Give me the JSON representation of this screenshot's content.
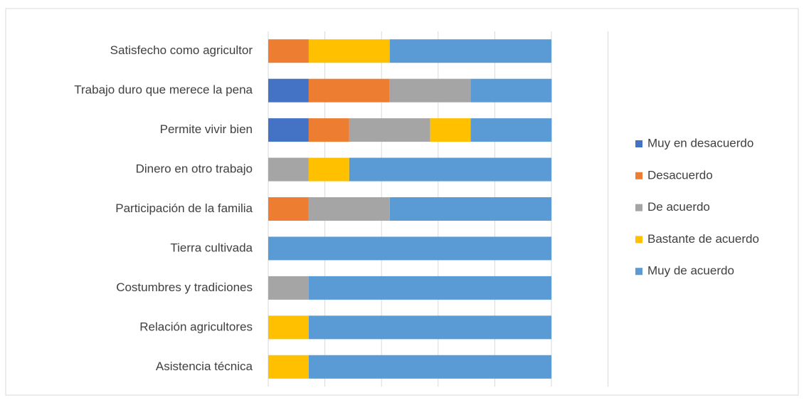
{
  "chart_data": {
    "type": "stacked-barh",
    "categories": [
      "Satisfecho como agricultor",
      "Trabajo duro  que merece la pena",
      "Permite vivir bien",
      "Dinero en otro trabajo ",
      "Participación de la familia",
      "Tierra cultivada",
      "Costumbres y tradiciones",
      "Relación agricultores",
      "Asistencia técnica "
    ],
    "series": [
      {
        "name": "Muy en desacuerdo",
        "color": "#4472c4",
        "values": [
          0,
          14.3,
          14.3,
          0,
          0,
          0,
          0,
          0,
          0
        ]
      },
      {
        "name": "Desacuerdo",
        "color": "#ed7d31",
        "values": [
          14.3,
          28.6,
          14.3,
          0,
          14.3,
          0,
          0,
          0,
          0
        ]
      },
      {
        "name": "De acuerdo",
        "color": "#a5a5a5",
        "values": [
          0,
          28.6,
          28.6,
          14.3,
          28.6,
          0,
          14.3,
          0,
          0
        ]
      },
      {
        "name": "Bastante de acuerdo",
        "color": "#ffc000",
        "values": [
          28.6,
          0,
          14.3,
          14.3,
          0,
          0,
          0,
          14.3,
          14.3
        ]
      },
      {
        "name": "Muy de acuerdo",
        "color": "#5b9bd5",
        "values": [
          57.1,
          28.6,
          28.6,
          71.4,
          57.1,
          100,
          85.7,
          85.7,
          85.7
        ]
      }
    ],
    "xlim": [
      0,
      120
    ],
    "xticks": [
      0,
      20,
      40,
      60,
      80,
      100,
      120
    ],
    "grid": true,
    "legend": "right"
  }
}
